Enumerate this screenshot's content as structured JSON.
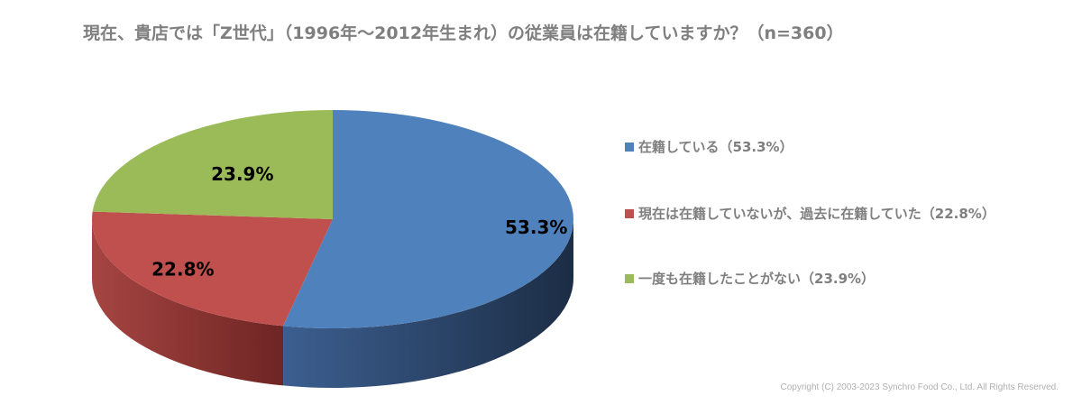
{
  "chart_data": {
    "type": "pie",
    "title": "現在、貴店では「Z世代」（1996年～2012年生まれ）の従業員は在籍していますか？（n=360）",
    "slices": [
      {
        "label": "在籍している",
        "legend": "在籍している（53.3%）",
        "value": 53.3,
        "data_label": "53.3%",
        "color": "#4f81bd"
      },
      {
        "label": "現在は在籍していないが、過去に在籍していた",
        "legend": "現在は在籍していないが、過去に在籍していた（22.8%）",
        "value": 22.8,
        "data_label": "22.8%",
        "color": "#c0504d"
      },
      {
        "label": "一度も在籍したことがない",
        "legend": "一度も在籍したことがない（23.9%）",
        "value": 23.9,
        "data_label": "23.9%",
        "color": "#9bbb59"
      }
    ],
    "legend_position": "right",
    "style": "3d"
  },
  "footer": {
    "copyright": "Copyright (C) 2003-2023 Synchro Food Co., Ltd. All Rights Reserved."
  }
}
